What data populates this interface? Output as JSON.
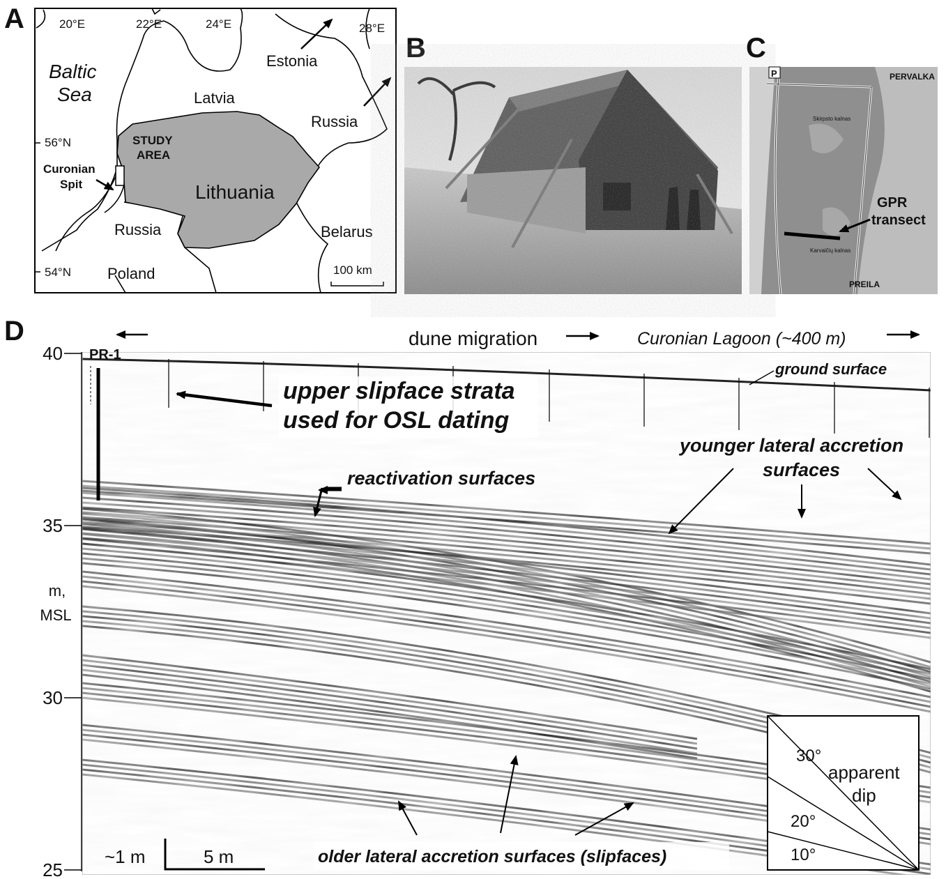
{
  "panel_a": {
    "letter": "A",
    "longitudes": [
      "20°E",
      "22°E",
      "24°E",
      "28°E"
    ],
    "latitudes": [
      "56°N",
      "54°N"
    ],
    "sea": [
      "Baltic",
      "Sea"
    ],
    "countries": [
      "Latvia",
      "Estonia",
      "Russia",
      "Lithuania",
      "Russia",
      "Belarus",
      "Poland"
    ],
    "study_area": [
      "STUDY",
      "AREA"
    ],
    "spit": [
      "Curonian",
      "Spit"
    ],
    "scale": "100 km"
  },
  "panel_b": {
    "letter": "B"
  },
  "panel_c": {
    "letter": "C",
    "parking": "P",
    "north_town": "PERVALKA",
    "south_town": "PREILA",
    "hill_north": "Skirpsto kalnas",
    "hill_south": "Karvaičių kalnas",
    "transect": [
      "GPR",
      "transect"
    ]
  },
  "panel_d": {
    "letter": "D",
    "y_ticks": [
      40,
      35,
      30,
      25
    ],
    "y_label": [
      "m,",
      "MSL"
    ],
    "well": "PR-1",
    "migration": "dune migration",
    "lagoon": "Curonian Lagoon (~400 m)",
    "ground": "ground surface",
    "upper": [
      "upper slipface strata",
      "used for OSL dating"
    ],
    "reactivation": "reactivation surfaces",
    "younger": [
      "younger lateral accretion",
      "surfaces"
    ],
    "older": "older lateral accretion surfaces (slipfaces)",
    "vscale": "~1 m",
    "hscale": "5 m",
    "dip": {
      "angles": [
        "30°",
        "20°",
        "10°"
      ],
      "caption": [
        "apparent",
        "dip"
      ]
    }
  }
}
